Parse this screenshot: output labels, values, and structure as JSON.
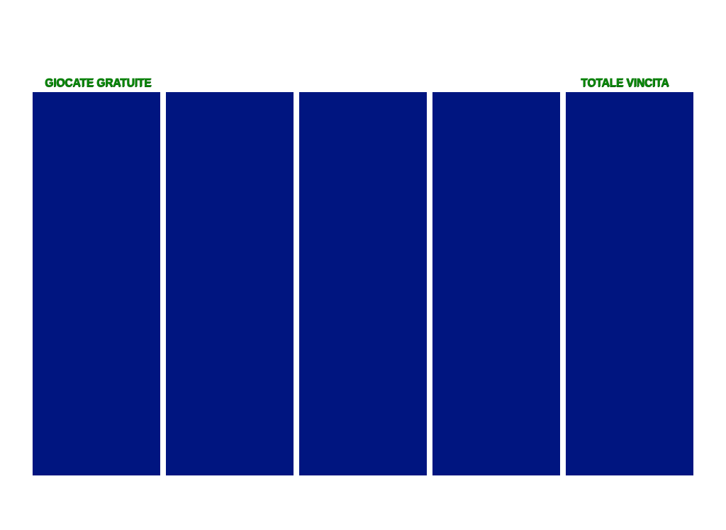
{
  "labels": {
    "free_spins": "GIOCATE GRATUITE",
    "total_win": "TOTALE VINCITA"
  },
  "reels": {
    "count": 5,
    "color": "#001580"
  },
  "colors": {
    "background": "#ffffff",
    "label_text": "#0a8a0a",
    "reel_fill": "#001580"
  }
}
